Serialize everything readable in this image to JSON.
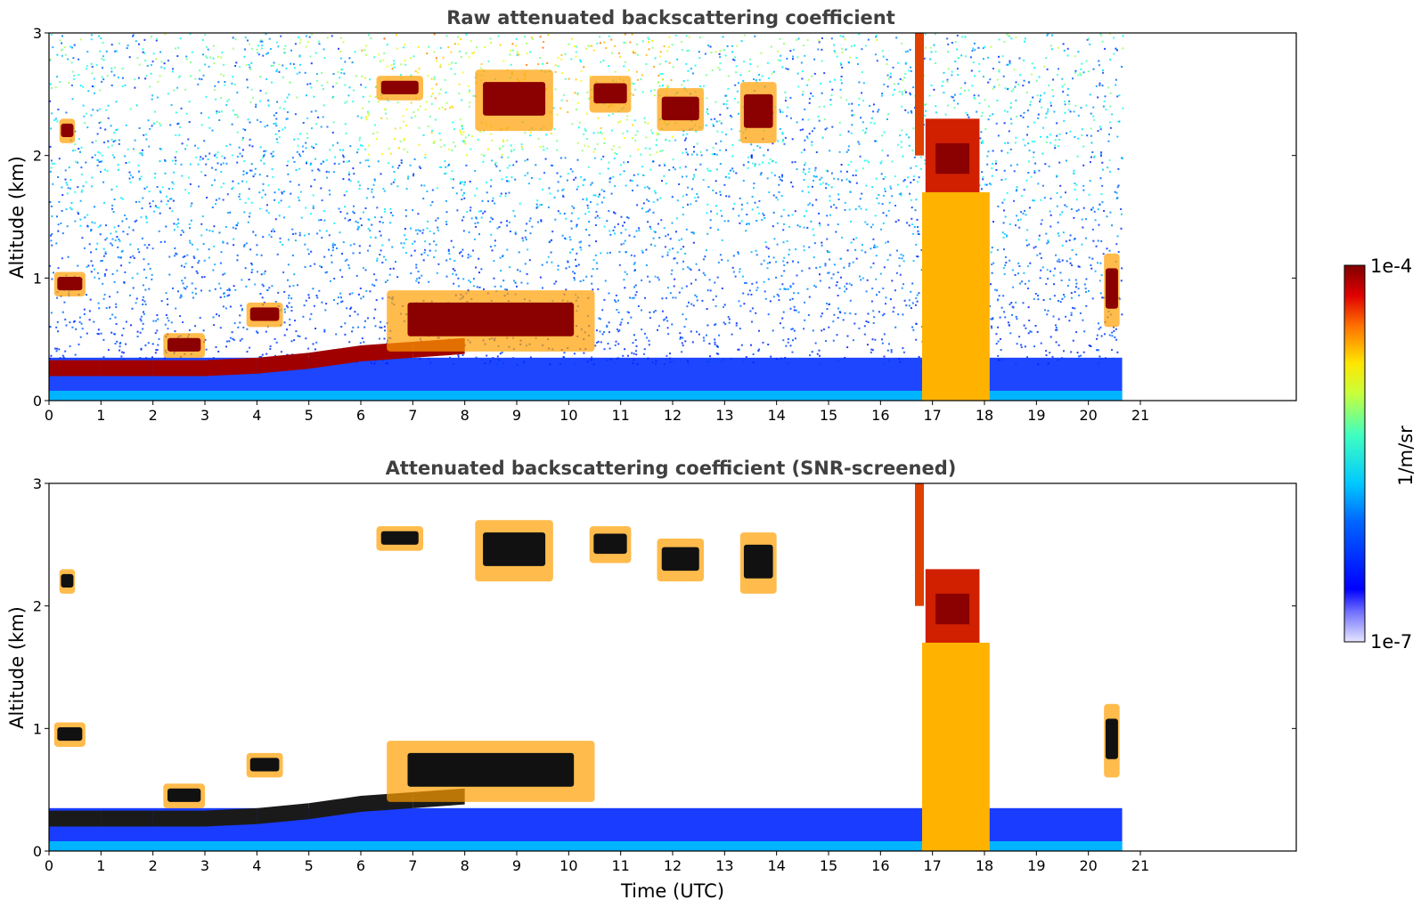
{
  "chart_data": [
    {
      "type": "heatmap",
      "title": "Raw attenuated backscattering coefficient",
      "xlabel": "",
      "ylabel": "Altitude (km)",
      "xlim": [
        0,
        24
      ],
      "ylim": [
        0,
        3
      ],
      "xticks": [
        "0",
        "1",
        "2",
        "3",
        "4",
        "5",
        "6",
        "7",
        "8",
        "9",
        "10",
        "11",
        "12",
        "13",
        "14",
        "15",
        "16",
        "17",
        "18",
        "19",
        "20",
        "21"
      ],
      "yticks": [
        "0",
        "1",
        "2",
        "3"
      ],
      "data_end_hour": 20.65,
      "features": [
        {
          "kind": "boundary_layer",
          "points": [
            [
              0,
              0.2
            ],
            [
              1,
              0.2
            ],
            [
              2,
              0.2
            ],
            [
              3,
              0.2
            ],
            [
              4,
              0.22
            ],
            [
              5,
              0.26
            ],
            [
              6,
              0.32
            ],
            [
              7,
              0.35
            ],
            [
              8,
              0.38
            ]
          ],
          "thickness": 0.13
        },
        {
          "kind": "cloud",
          "x": [
            0.1,
            0.7
          ],
          "y": [
            0.85,
            1.05
          ]
        },
        {
          "kind": "cloud",
          "x": [
            0.2,
            0.5
          ],
          "y": [
            2.1,
            2.3
          ]
        },
        {
          "kind": "cloud",
          "x": [
            2.2,
            3.0
          ],
          "y": [
            0.35,
            0.55
          ]
        },
        {
          "kind": "cloud",
          "x": [
            3.8,
            4.5
          ],
          "y": [
            0.6,
            0.8
          ]
        },
        {
          "kind": "cloud",
          "x": [
            6.5,
            10.5
          ],
          "y": [
            0.4,
            0.9
          ]
        },
        {
          "kind": "cloud",
          "x": [
            6.3,
            7.2
          ],
          "y": [
            2.45,
            2.65
          ]
        },
        {
          "kind": "cloud",
          "x": [
            8.2,
            9.7
          ],
          "y": [
            2.2,
            2.7
          ]
        },
        {
          "kind": "cloud",
          "x": [
            10.4,
            11.2
          ],
          "y": [
            2.35,
            2.65
          ]
        },
        {
          "kind": "cloud",
          "x": [
            11.7,
            12.6
          ],
          "y": [
            2.2,
            2.55
          ]
        },
        {
          "kind": "cloud",
          "x": [
            13.3,
            14.0
          ],
          "y": [
            2.1,
            2.6
          ]
        },
        {
          "kind": "precipitation",
          "x": [
            16.8,
            18.1
          ],
          "y": [
            0,
            3
          ]
        },
        {
          "kind": "cloud",
          "x": [
            20.3,
            20.6
          ],
          "y": [
            0.6,
            1.2
          ]
        }
      ]
    },
    {
      "type": "heatmap",
      "title": "Attenuated backscattering coefficient (SNR-screened)",
      "xlabel": "Time (UTC)",
      "ylabel": "Altitude (km)",
      "xlim": [
        0,
        24
      ],
      "ylim": [
        0,
        3
      ],
      "xticks": [
        "0",
        "1",
        "2",
        "3",
        "4",
        "5",
        "6",
        "7",
        "8",
        "9",
        "10",
        "11",
        "12",
        "13",
        "14",
        "15",
        "16",
        "17",
        "18",
        "19",
        "20",
        "21"
      ],
      "yticks": [
        "0",
        "1",
        "2",
        "3"
      ],
      "data_end_hour": 20.65
    }
  ],
  "colorbar": {
    "label": "1/m/sr",
    "max_label": "1e-4",
    "min_label": "1e-7",
    "colormap": "jet"
  }
}
